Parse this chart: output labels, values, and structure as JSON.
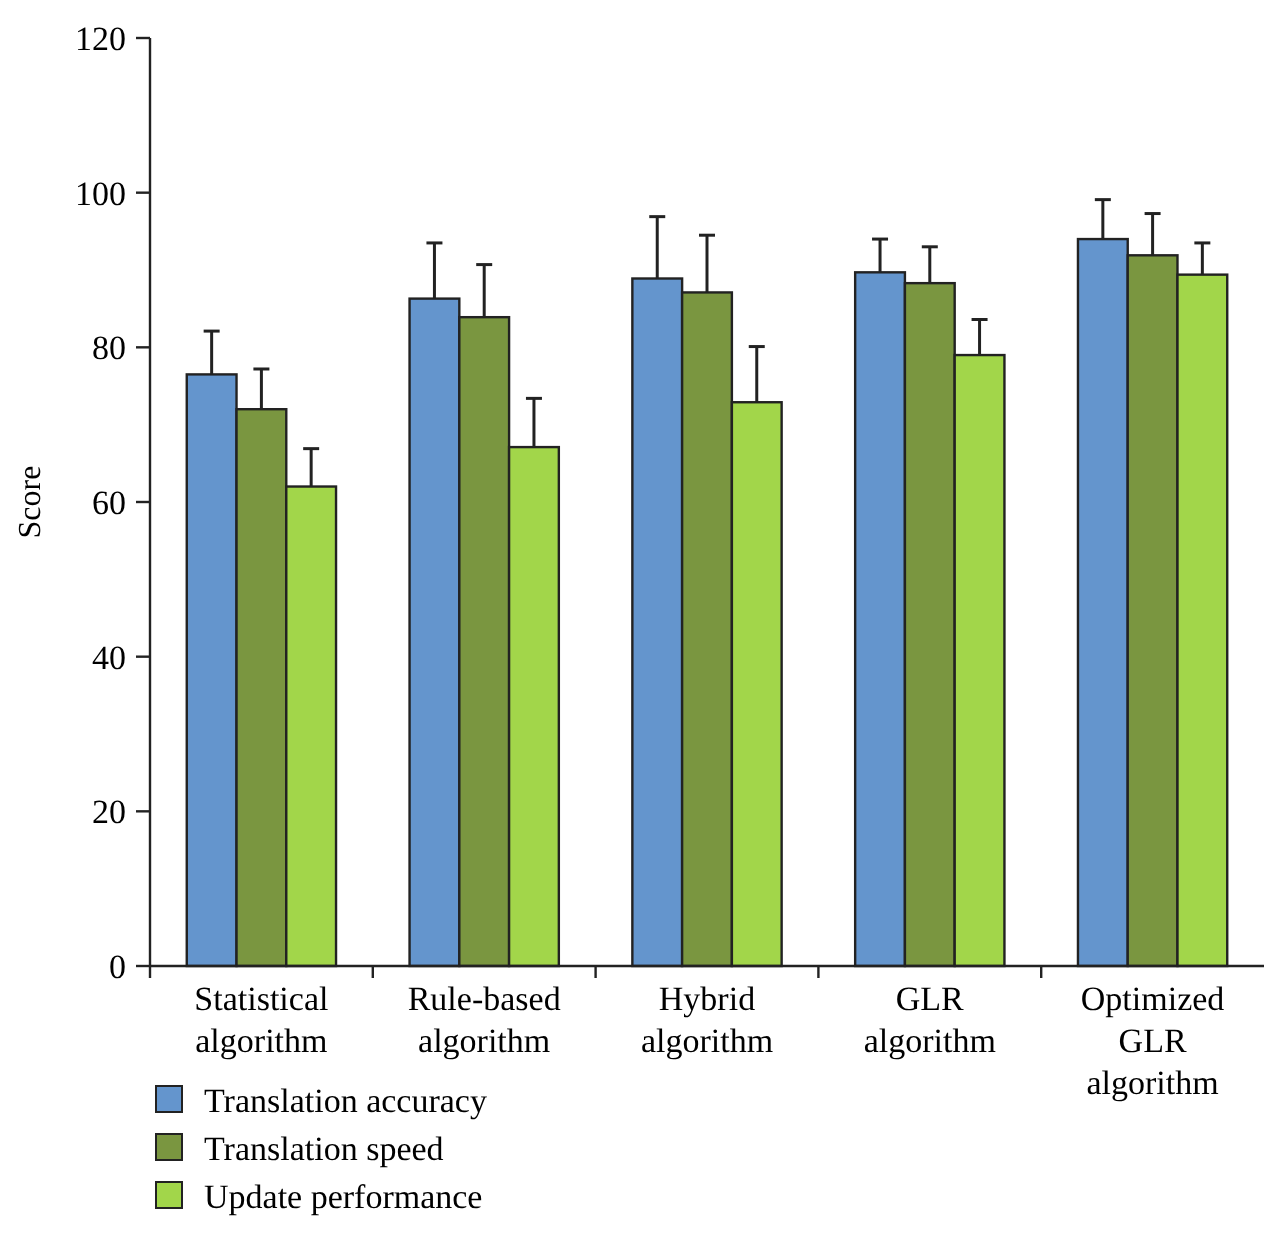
{
  "chart_data": {
    "type": "bar",
    "ylabel": "Score",
    "categories": [
      "Statistical algorithm",
      "Rule-based algorithm",
      "Hybrid algorithm",
      "GLR algorithm",
      "Optimized GLR algorithm"
    ],
    "series": [
      {
        "name": "Translation accuracy",
        "color": "#6495cd",
        "values": [
          76.5,
          86.3,
          88.9,
          89.7,
          94.0
        ],
        "errors": [
          [
            76.5,
            82.1
          ],
          [
            86.3,
            93.5
          ],
          [
            88.9,
            96.9
          ],
          [
            89.7,
            94.0
          ],
          [
            94.0,
            99.1
          ]
        ]
      },
      {
        "name": "Translation speed",
        "color": "#7a9640",
        "values": [
          72.0,
          83.9,
          87.1,
          88.3,
          91.9
        ],
        "errors": [
          [
            72.0,
            77.2
          ],
          [
            83.9,
            90.7
          ],
          [
            87.1,
            94.5
          ],
          [
            88.3,
            93.0
          ],
          [
            91.9,
            97.3
          ]
        ]
      },
      {
        "name": "Update performance",
        "color": "#a2d64a",
        "values": [
          62.0,
          67.1,
          72.9,
          79.0,
          89.4
        ],
        "errors": [
          [
            62.0,
            66.9
          ],
          [
            67.1,
            73.4
          ],
          [
            72.9,
            80.1
          ],
          [
            79.0,
            83.6
          ],
          [
            89.4,
            93.5
          ]
        ]
      }
    ],
    "ylim": [
      0,
      120
    ],
    "yticks": [
      0,
      20,
      40,
      60,
      80,
      100,
      120
    ],
    "legend": "bottom"
  }
}
